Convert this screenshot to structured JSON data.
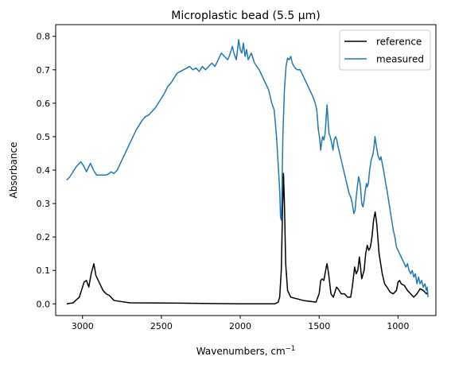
{
  "chart_data": {
    "type": "line",
    "title": "Microplastic bead (5.5 μm)",
    "xlabel": "Wavenumbers, cm",
    "xlabel_sup": "−1",
    "ylabel": "Absorbance",
    "xlim": [
      3170,
      760
    ],
    "x_reversed": true,
    "ylim": [
      -0.035,
      0.835
    ],
    "xticks": [
      3000,
      2500,
      2000,
      1500,
      1000
    ],
    "yticks": [
      0.0,
      0.1,
      0.2,
      0.3,
      0.4,
      0.5,
      0.6,
      0.7,
      0.8
    ],
    "grid": false,
    "legend": "top-right",
    "series": [
      {
        "name": "reference",
        "color": "#000000",
        "points": [
          [
            3100,
            0.0
          ],
          [
            3060,
            0.003
          ],
          [
            3020,
            0.02
          ],
          [
            2990,
            0.065
          ],
          [
            2975,
            0.07
          ],
          [
            2960,
            0.05
          ],
          [
            2945,
            0.09
          ],
          [
            2928,
            0.12
          ],
          [
            2915,
            0.085
          ],
          [
            2895,
            0.065
          ],
          [
            2870,
            0.04
          ],
          [
            2850,
            0.03
          ],
          [
            2830,
            0.025
          ],
          [
            2800,
            0.01
          ],
          [
            2700,
            0.003
          ],
          [
            2400,
            0.002
          ],
          [
            2000,
            0.0
          ],
          [
            1780,
            0.0
          ],
          [
            1760,
            0.005
          ],
          [
            1750,
            0.02
          ],
          [
            1740,
            0.1
          ],
          [
            1732,
            0.28
          ],
          [
            1726,
            0.39
          ],
          [
            1720,
            0.3
          ],
          [
            1712,
            0.12
          ],
          [
            1700,
            0.04
          ],
          [
            1680,
            0.02
          ],
          [
            1600,
            0.01
          ],
          [
            1520,
            0.005
          ],
          [
            1500,
            0.03
          ],
          [
            1490,
            0.07
          ],
          [
            1480,
            0.075
          ],
          [
            1470,
            0.07
          ],
          [
            1455,
            0.11
          ],
          [
            1450,
            0.12
          ],
          [
            1440,
            0.09
          ],
          [
            1425,
            0.03
          ],
          [
            1410,
            0.02
          ],
          [
            1390,
            0.05
          ],
          [
            1380,
            0.045
          ],
          [
            1360,
            0.03
          ],
          [
            1340,
            0.03
          ],
          [
            1320,
            0.02
          ],
          [
            1300,
            0.02
          ],
          [
            1290,
            0.05
          ],
          [
            1275,
            0.11
          ],
          [
            1265,
            0.09
          ],
          [
            1255,
            0.1
          ],
          [
            1245,
            0.14
          ],
          [
            1240,
            0.12
          ],
          [
            1230,
            0.075
          ],
          [
            1215,
            0.1
          ],
          [
            1205,
            0.15
          ],
          [
            1195,
            0.175
          ],
          [
            1185,
            0.16
          ],
          [
            1175,
            0.17
          ],
          [
            1165,
            0.2
          ],
          [
            1155,
            0.25
          ],
          [
            1145,
            0.275
          ],
          [
            1135,
            0.24
          ],
          [
            1120,
            0.15
          ],
          [
            1100,
            0.09
          ],
          [
            1085,
            0.06
          ],
          [
            1070,
            0.05
          ],
          [
            1050,
            0.035
          ],
          [
            1030,
            0.03
          ],
          [
            1010,
            0.04
          ],
          [
            1000,
            0.065
          ],
          [
            990,
            0.07
          ],
          [
            980,
            0.06
          ],
          [
            960,
            0.055
          ],
          [
            940,
            0.04
          ],
          [
            920,
            0.03
          ],
          [
            900,
            0.02
          ],
          [
            880,
            0.03
          ],
          [
            860,
            0.045
          ],
          [
            840,
            0.04
          ],
          [
            820,
            0.03
          ],
          [
            810,
            0.035
          ]
        ]
      },
      {
        "name": "measured",
        "color": "#1f77b4",
        "points": [
          [
            3100,
            0.37
          ],
          [
            3080,
            0.38
          ],
          [
            3060,
            0.395
          ],
          [
            3040,
            0.41
          ],
          [
            3020,
            0.42
          ],
          [
            3010,
            0.425
          ],
          [
            2990,
            0.41
          ],
          [
            2975,
            0.395
          ],
          [
            2960,
            0.41
          ],
          [
            2950,
            0.42
          ],
          [
            2940,
            0.41
          ],
          [
            2925,
            0.395
          ],
          [
            2910,
            0.385
          ],
          [
            2880,
            0.385
          ],
          [
            2850,
            0.385
          ],
          [
            2830,
            0.39
          ],
          [
            2820,
            0.395
          ],
          [
            2800,
            0.39
          ],
          [
            2780,
            0.4
          ],
          [
            2760,
            0.42
          ],
          [
            2740,
            0.44
          ],
          [
            2720,
            0.46
          ],
          [
            2700,
            0.48
          ],
          [
            2680,
            0.5
          ],
          [
            2660,
            0.52
          ],
          [
            2640,
            0.535
          ],
          [
            2620,
            0.55
          ],
          [
            2600,
            0.56
          ],
          [
            2580,
            0.565
          ],
          [
            2560,
            0.575
          ],
          [
            2540,
            0.585
          ],
          [
            2520,
            0.6
          ],
          [
            2500,
            0.615
          ],
          [
            2480,
            0.63
          ],
          [
            2460,
            0.65
          ],
          [
            2440,
            0.66
          ],
          [
            2420,
            0.675
          ],
          [
            2400,
            0.69
          ],
          [
            2380,
            0.695
          ],
          [
            2360,
            0.7
          ],
          [
            2340,
            0.705
          ],
          [
            2320,
            0.71
          ],
          [
            2300,
            0.7
          ],
          [
            2280,
            0.705
          ],
          [
            2260,
            0.695
          ],
          [
            2240,
            0.71
          ],
          [
            2220,
            0.7
          ],
          [
            2200,
            0.71
          ],
          [
            2180,
            0.72
          ],
          [
            2160,
            0.71
          ],
          [
            2140,
            0.73
          ],
          [
            2120,
            0.75
          ],
          [
            2100,
            0.74
          ],
          [
            2080,
            0.73
          ],
          [
            2070,
            0.74
          ],
          [
            2050,
            0.77
          ],
          [
            2040,
            0.75
          ],
          [
            2025,
            0.73
          ],
          [
            2010,
            0.79
          ],
          [
            2000,
            0.76
          ],
          [
            1990,
            0.75
          ],
          [
            1980,
            0.78
          ],
          [
            1970,
            0.74
          ],
          [
            1960,
            0.76
          ],
          [
            1950,
            0.73
          ],
          [
            1930,
            0.75
          ],
          [
            1910,
            0.72
          ],
          [
            1895,
            0.71
          ],
          [
            1880,
            0.7
          ],
          [
            1860,
            0.68
          ],
          [
            1840,
            0.66
          ],
          [
            1820,
            0.64
          ],
          [
            1800,
            0.6
          ],
          [
            1785,
            0.58
          ],
          [
            1770,
            0.5
          ],
          [
            1760,
            0.42
          ],
          [
            1750,
            0.34
          ],
          [
            1745,
            0.26
          ],
          [
            1740,
            0.25
          ],
          [
            1736,
            0.33
          ],
          [
            1730,
            0.5
          ],
          [
            1720,
            0.64
          ],
          [
            1710,
            0.71
          ],
          [
            1700,
            0.735
          ],
          [
            1690,
            0.73
          ],
          [
            1680,
            0.74
          ],
          [
            1670,
            0.72
          ],
          [
            1660,
            0.71
          ],
          [
            1640,
            0.7
          ],
          [
            1620,
            0.7
          ],
          [
            1600,
            0.68
          ],
          [
            1580,
            0.66
          ],
          [
            1560,
            0.64
          ],
          [
            1540,
            0.62
          ],
          [
            1525,
            0.6
          ],
          [
            1515,
            0.58
          ],
          [
            1505,
            0.52
          ],
          [
            1498,
            0.5
          ],
          [
            1490,
            0.46
          ],
          [
            1485,
            0.48
          ],
          [
            1478,
            0.5
          ],
          [
            1470,
            0.49
          ],
          [
            1462,
            0.51
          ],
          [
            1455,
            0.56
          ],
          [
            1450,
            0.595
          ],
          [
            1445,
            0.56
          ],
          [
            1438,
            0.51
          ],
          [
            1430,
            0.5
          ],
          [
            1420,
            0.48
          ],
          [
            1412,
            0.46
          ],
          [
            1405,
            0.49
          ],
          [
            1396,
            0.5
          ],
          [
            1388,
            0.49
          ],
          [
            1380,
            0.47
          ],
          [
            1370,
            0.45
          ],
          [
            1360,
            0.43
          ],
          [
            1350,
            0.41
          ],
          [
            1340,
            0.39
          ],
          [
            1330,
            0.37
          ],
          [
            1320,
            0.35
          ],
          [
            1310,
            0.33
          ],
          [
            1300,
            0.32
          ],
          [
            1290,
            0.3
          ],
          [
            1280,
            0.27
          ],
          [
            1272,
            0.28
          ],
          [
            1265,
            0.32
          ],
          [
            1258,
            0.35
          ],
          [
            1250,
            0.38
          ],
          [
            1244,
            0.37
          ],
          [
            1238,
            0.35
          ],
          [
            1230,
            0.3
          ],
          [
            1222,
            0.29
          ],
          [
            1215,
            0.31
          ],
          [
            1207,
            0.34
          ],
          [
            1200,
            0.36
          ],
          [
            1195,
            0.35
          ],
          [
            1188,
            0.36
          ],
          [
            1180,
            0.4
          ],
          [
            1170,
            0.43
          ],
          [
            1163,
            0.44
          ],
          [
            1158,
            0.45
          ],
          [
            1152,
            0.47
          ],
          [
            1146,
            0.5
          ],
          [
            1140,
            0.48
          ],
          [
            1133,
            0.46
          ],
          [
            1125,
            0.44
          ],
          [
            1115,
            0.43
          ],
          [
            1108,
            0.44
          ],
          [
            1100,
            0.42
          ],
          [
            1092,
            0.4
          ],
          [
            1085,
            0.38
          ],
          [
            1078,
            0.36
          ],
          [
            1070,
            0.34
          ],
          [
            1060,
            0.31
          ],
          [
            1050,
            0.28
          ],
          [
            1040,
            0.25
          ],
          [
            1030,
            0.22
          ],
          [
            1020,
            0.2
          ],
          [
            1010,
            0.17
          ],
          [
            1000,
            0.16
          ],
          [
            990,
            0.15
          ],
          [
            980,
            0.14
          ],
          [
            970,
            0.13
          ],
          [
            960,
            0.12
          ],
          [
            950,
            0.11
          ],
          [
            940,
            0.12
          ],
          [
            930,
            0.1
          ],
          [
            920,
            0.09
          ],
          [
            910,
            0.1
          ],
          [
            900,
            0.08
          ],
          [
            890,
            0.09
          ],
          [
            880,
            0.06
          ],
          [
            870,
            0.08
          ],
          [
            860,
            0.06
          ],
          [
            850,
            0.07
          ],
          [
            840,
            0.05
          ],
          [
            830,
            0.06
          ],
          [
            820,
            0.04
          ],
          [
            815,
            0.05
          ],
          [
            810,
            0.02
          ]
        ]
      }
    ]
  }
}
